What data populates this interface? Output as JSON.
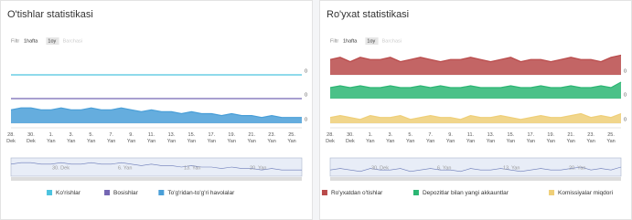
{
  "chart_data": [
    {
      "type": "area",
      "title": "O'tishlar statistikasi",
      "zoom_label": "Filtr",
      "zoom_options": [
        "1hafta",
        "1oy",
        "Barchasi"
      ],
      "categories": [
        "28. Dek",
        null,
        "30. Dek",
        null,
        "1. Yan",
        null,
        "3. Yan",
        null,
        "5. Yan",
        null,
        "7. Yan",
        null,
        "9. Yan",
        null,
        "11. Yan",
        null,
        "13. Yan",
        null,
        "15. Yan",
        null,
        "17. Yan",
        null,
        "19. Yan",
        null,
        "21. Yan",
        null,
        "23. Yan",
        null,
        "25. Yan",
        null
      ],
      "navigator_labels": [
        "30. Dek",
        "6. Yan",
        "13. Yan",
        "20. Yan"
      ],
      "series": [
        {
          "name": "Ko'rishlar",
          "color": "#4cc3df",
          "type": "line",
          "ylim": [
            0,
            10
          ],
          "yticks": [
            0
          ],
          "values": [
            0,
            0,
            0,
            0,
            0,
            0,
            0,
            0,
            0,
            0,
            0,
            0,
            0,
            0,
            0,
            0,
            0,
            0,
            0,
            0,
            0,
            0,
            0,
            0,
            0,
            0,
            0,
            0,
            0,
            0
          ]
        },
        {
          "name": "Bosishlar",
          "color": "#7466b3",
          "type": "line",
          "ylim": [
            0,
            10
          ],
          "yticks": [
            0
          ],
          "values": [
            0,
            0,
            0,
            0,
            0,
            0,
            0,
            0,
            0,
            0,
            0,
            0,
            0,
            0,
            0,
            0,
            0,
            0,
            0,
            0,
            0,
            0,
            0,
            0,
            0,
            0,
            0,
            0,
            0,
            0
          ]
        },
        {
          "name": "To'g'ridan-to'g'ri havolalar",
          "color": "#4a9fd8",
          "type": "area",
          "ylim": [
            0,
            10
          ],
          "yticks": [
            0
          ],
          "values": [
            7,
            8,
            8,
            7,
            7,
            8,
            7,
            7,
            8,
            7,
            7,
            8,
            7,
            6,
            7,
            6,
            6,
            5,
            6,
            5,
            5,
            4,
            5,
            4,
            4,
            3,
            4,
            3,
            3,
            3
          ]
        }
      ]
    },
    {
      "type": "area",
      "title": "Ro'yxat statistikasi",
      "zoom_label": "Filtr",
      "zoom_options": [
        "1hafta",
        "1oy",
        "Barchasi"
      ],
      "categories": [
        "28. Dek",
        null,
        "30. Dek",
        null,
        "1. Yan",
        null,
        "3. Yan",
        null,
        "5. Yan",
        null,
        "7. Yan",
        null,
        "9. Yan",
        null,
        "11. Yan",
        null,
        "13. Yan",
        null,
        "15. Yan",
        null,
        "17. Yan",
        null,
        "19. Yan",
        null,
        "21. Yan",
        null,
        "23. Yan",
        null,
        "25. Yan",
        null
      ],
      "navigator_labels": [
        "30. Dek",
        "6. Yan",
        "13. Yan",
        "20. Yan"
      ],
      "series": [
        {
          "name": "Ro'yxatdan o'tishlar",
          "color": "#b94a4a",
          "type": "area",
          "ylim": [
            0,
            10
          ],
          "yticks": [
            0
          ],
          "values": [
            7,
            8,
            6,
            8,
            7,
            7,
            8,
            6,
            7,
            8,
            7,
            6,
            7,
            7,
            8,
            7,
            6,
            7,
            8,
            6,
            7,
            7,
            6,
            7,
            8,
            7,
            7,
            6,
            8,
            9
          ]
        },
        {
          "name": "Depozitlar bilan yangi akkauntlar",
          "color": "#2bb673",
          "type": "area",
          "ylim": [
            0,
            10
          ],
          "yticks": [
            0
          ],
          "values": [
            6,
            7,
            6,
            7,
            6,
            6,
            7,
            6,
            6,
            7,
            6,
            7,
            6,
            6,
            7,
            6,
            6,
            6,
            7,
            6,
            6,
            7,
            6,
            6,
            7,
            6,
            6,
            7,
            6,
            9
          ]
        },
        {
          "name": "Komissiyalar miqdori",
          "color": "#efcf78",
          "type": "area",
          "ylim": [
            0,
            10
          ],
          "yticks": [
            0
          ],
          "values": [
            3,
            4,
            3,
            2,
            4,
            3,
            3,
            4,
            2,
            3,
            4,
            3,
            3,
            2,
            4,
            3,
            3,
            4,
            3,
            2,
            3,
            4,
            3,
            3,
            4,
            5,
            3,
            4,
            3,
            5
          ]
        }
      ]
    }
  ]
}
